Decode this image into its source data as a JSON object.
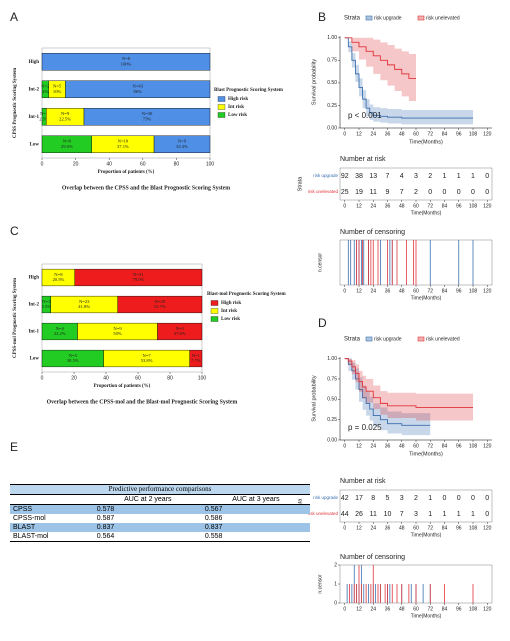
{
  "chart_data": [
    {
      "panel": "A",
      "type": "hbar-stack",
      "title": "Overlap between the CPSS and the Blast Prognostic Scoring System",
      "xlabel": "Proportion of patients (%)",
      "ylabel": "CPSS Prognostic Scoring System",
      "legend_title": "Blast Prognostic Scoring System",
      "categories": [
        "Low",
        "Int-1",
        "Int-2",
        "High"
      ],
      "xlim": [
        0,
        100
      ],
      "xticks": [
        0,
        20,
        40,
        60,
        80,
        100
      ],
      "series": [
        {
          "name": "High risk",
          "color": "#4f8fe6",
          "values": [
            33.3,
            75,
            86,
            100
          ],
          "value_labels": [
            "N=9 33.3%",
            "N=30 75%",
            "N=43 86%",
            "N=8 100%"
          ]
        },
        {
          "name": "Int risk",
          "color": "#ffff00",
          "values": [
            37.1,
            22.5,
            10,
            null
          ],
          "value_labels": [
            "N=10 37.1%",
            "N=9 22.5%",
            "N=5 10%",
            null
          ]
        },
        {
          "name": "Low risk",
          "color": "#22cc22",
          "values": [
            29.6,
            2.5,
            4,
            null
          ],
          "value_labels": [
            "N=8 29.6%",
            "N=1 2.5%",
            "N=2 4%",
            null
          ]
        }
      ]
    },
    {
      "panel": "B",
      "type": "km",
      "legend_title": "Strata",
      "xlabel": "Time(Months)",
      "ylabel": "Survival probability",
      "pvalue": "p < 0.001",
      "xlim": [
        -4,
        124
      ],
      "xticks": [
        0,
        12,
        24,
        36,
        48,
        60,
        72,
        84,
        96,
        108,
        120
      ],
      "ylim": [
        0,
        1.02
      ],
      "yticks": [
        {
          "value": 0,
          "label": "0.00"
        },
        {
          "value": 0.25,
          "label": "0.25"
        },
        {
          "value": 0.5,
          "label": "0.50"
        },
        {
          "value": 0.75,
          "label": "0.75"
        },
        {
          "value": 1,
          "label": "1.00"
        }
      ],
      "series": [
        {
          "name": "risk upgrade",
          "color": "#3a6fb0",
          "x": [
            0,
            3,
            6,
            9,
            12,
            15,
            18,
            21,
            24,
            30,
            36,
            48,
            60,
            72,
            96,
            108
          ],
          "values": [
            1,
            0.9,
            0.75,
            0.6,
            0.45,
            0.32,
            0.22,
            0.17,
            0.14,
            0.13,
            0.12,
            0.11,
            0.11,
            0.11,
            0.11,
            0.11
          ],
          "lower": [
            1,
            0.84,
            0.67,
            0.51,
            0.35,
            0.22,
            0.13,
            0.09,
            0.07,
            0.06,
            0.05,
            0.04,
            0.04,
            0.04,
            0.04,
            0.04
          ],
          "upper": [
            1,
            0.96,
            0.83,
            0.7,
            0.55,
            0.42,
            0.32,
            0.26,
            0.23,
            0.22,
            0.21,
            0.2,
            0.2,
            0.2,
            0.2,
            0.2
          ]
        },
        {
          "name": "risk unelevated",
          "color": "#e0353a",
          "x": [
            0,
            6,
            12,
            18,
            24,
            30,
            36,
            42,
            48,
            54,
            60
          ],
          "values": [
            1,
            0.95,
            0.9,
            0.85,
            0.8,
            0.75,
            0.7,
            0.65,
            0.6,
            0.55,
            0.55
          ],
          "lower": [
            1,
            0.85,
            0.76,
            0.68,
            0.6,
            0.53,
            0.47,
            0.41,
            0.35,
            0.3,
            0.3
          ],
          "upper": [
            1,
            1,
            1,
            1,
            0.98,
            0.95,
            0.92,
            0.88,
            0.85,
            0.82,
            0.82
          ]
        }
      ]
    },
    {
      "type": "risk-table",
      "title": "Number at risk",
      "ylabel": "Strata",
      "xlabel": "Time(Months)",
      "xlim": [
        -4,
        124
      ],
      "xticks": [
        0,
        12,
        24,
        36,
        48,
        60,
        72,
        84,
        96,
        108,
        120
      ],
      "series": [
        {
          "name": "risk upgrade",
          "color": "#3a6fb0",
          "values": [
            92,
            38,
            13,
            7,
            4,
            3,
            2,
            1,
            1,
            1,
            0
          ]
        },
        {
          "name": "risk unelevated",
          "color": "#e0353a",
          "values": [
            25,
            19,
            11,
            9,
            7,
            2,
            0,
            0,
            0,
            0,
            0
          ]
        }
      ]
    },
    {
      "type": "censor",
      "title": "Number of censoring",
      "ylabel": "n.censor",
      "xlabel": "Time(Months)",
      "xlim": [
        -4,
        124
      ],
      "xticks": [
        0,
        12,
        24,
        36,
        48,
        60,
        72,
        84,
        96,
        108,
        120
      ],
      "ylim": [
        0,
        1
      ],
      "series": [
        {
          "name": "risk upgrade",
          "color": "#3a6fb0",
          "x": [
            3,
            5,
            8,
            10,
            12,
            14,
            16,
            20,
            30,
            38,
            40,
            72,
            96,
            108
          ],
          "values": [
            1,
            1,
            1,
            1,
            1,
            1,
            1,
            1,
            1,
            1,
            1,
            1,
            1,
            1
          ]
        },
        {
          "name": "risk unelevated",
          "color": "#e0353a",
          "x": [
            10,
            12,
            15,
            20,
            22,
            24,
            28,
            36,
            40,
            44,
            52,
            58,
            60
          ],
          "values": [
            1,
            1,
            1,
            1,
            1,
            1,
            1,
            1,
            1,
            1,
            1,
            1,
            1
          ]
        }
      ]
    },
    {
      "panel": "C",
      "type": "hbar-stack",
      "title": "Overlap between the CPSS-mol and the Blast-mol Prognostic Scoring System",
      "xlabel": "Proportion of patients (%)",
      "ylabel": "CPSS-mol Prognostic Scoring System",
      "legend_title": "Blast-mol Prognostic Scoring System",
      "categories": [
        "Low",
        "Int-1",
        "Int-2",
        "High"
      ],
      "xlim": [
        0,
        100
      ],
      "xticks": [
        0,
        20,
        40,
        60,
        80,
        100
      ],
      "series": [
        {
          "name": "High risk",
          "color": "#ee1c1c",
          "values": [
            7.7,
            27.8,
            52.7,
            79.5
          ],
          "value_labels": [
            "N=1 7.7%",
            "N=5 27.8%",
            "N=29 52.7%",
            "N=31 79.5%"
          ]
        },
        {
          "name": "Int risk",
          "color": "#ffff00",
          "values": [
            53.8,
            50,
            41.8,
            20.5
          ],
          "value_labels": [
            "N=7 53.8%",
            "N=9 50%",
            "N=23 41.8%",
            "N=8 20.5%"
          ]
        },
        {
          "name": "Low risk",
          "color": "#22cc22",
          "values": [
            38.5,
            22.2,
            5.5,
            null
          ],
          "value_labels": [
            "N=5 38.5%",
            "N=4 22.2%",
            "N=3 5.5%",
            null
          ]
        }
      ]
    },
    {
      "panel": "D",
      "type": "km",
      "legend_title": "Strata",
      "xlabel": "Time(Months)",
      "ylabel": "Survival probability",
      "pvalue": "p = 0.025",
      "xlim": [
        -4,
        124
      ],
      "xticks": [
        0,
        12,
        24,
        36,
        48,
        60,
        72,
        84,
        96,
        108,
        120
      ],
      "ylim": [
        0,
        1.02
      ],
      "yticks": [
        {
          "value": 0,
          "label": "0.00"
        },
        {
          "value": 0.25,
          "label": "0.25"
        },
        {
          "value": 0.5,
          "label": "0.50"
        },
        {
          "value": 0.75,
          "label": "0.75"
        },
        {
          "value": 1,
          "label": "1.00"
        }
      ],
      "series": [
        {
          "name": "risk upgrade",
          "color": "#3a6fb0",
          "x": [
            0,
            3,
            6,
            9,
            12,
            15,
            18,
            21,
            24,
            30,
            36,
            48,
            72
          ],
          "values": [
            1,
            0.93,
            0.85,
            0.75,
            0.62,
            0.52,
            0.45,
            0.38,
            0.3,
            0.25,
            0.2,
            0.18,
            0.18
          ],
          "lower": [
            1,
            0.85,
            0.74,
            0.62,
            0.47,
            0.37,
            0.3,
            0.24,
            0.17,
            0.12,
            0.08,
            0.06,
            0.06
          ],
          "upper": [
            1,
            1,
            0.95,
            0.88,
            0.77,
            0.67,
            0.6,
            0.53,
            0.45,
            0.4,
            0.35,
            0.33,
            0.33
          ]
        },
        {
          "name": "risk unelevated",
          "color": "#e0353a",
          "x": [
            0,
            3,
            6,
            9,
            12,
            15,
            18,
            24,
            30,
            36,
            60,
            108
          ],
          "values": [
            1,
            0.97,
            0.9,
            0.82,
            0.72,
            0.65,
            0.6,
            0.52,
            0.45,
            0.42,
            0.4,
            0.4
          ],
          "lower": [
            1,
            0.92,
            0.81,
            0.71,
            0.59,
            0.51,
            0.46,
            0.38,
            0.31,
            0.27,
            0.24,
            0.24
          ],
          "upper": [
            1,
            1,
            0.98,
            0.93,
            0.85,
            0.79,
            0.75,
            0.67,
            0.6,
            0.58,
            0.57,
            0.57
          ]
        }
      ]
    },
    {
      "type": "risk-table",
      "title": "Number at risk",
      "ylabel": "Strata",
      "xlabel": "Time(Months)",
      "xlim": [
        -4,
        124
      ],
      "xticks": [
        0,
        12,
        24,
        36,
        48,
        60,
        72,
        84,
        96,
        108,
        120
      ],
      "series": [
        {
          "name": "risk upgrade",
          "color": "#3a6fb0",
          "values": [
            42,
            17,
            8,
            5,
            3,
            2,
            1,
            0,
            0,
            0,
            0
          ]
        },
        {
          "name": "risk unelevated",
          "color": "#e0353a",
          "values": [
            44,
            26,
            11,
            10,
            7,
            3,
            1,
            1,
            1,
            1,
            0
          ]
        }
      ]
    },
    {
      "type": "censor",
      "title": "Number of censoring",
      "ylabel": "n.censor",
      "xlabel": "Time(Months)",
      "xlim": [
        -4,
        124
      ],
      "xticks": [
        0,
        12,
        24,
        36,
        48,
        60,
        72,
        84,
        96,
        108,
        120
      ],
      "ylim": [
        0,
        2
      ],
      "yticks": [
        0,
        1,
        2
      ],
      "series": [
        {
          "name": "risk upgrade",
          "color": "#3a6fb0",
          "x": [
            2,
            6,
            8,
            10,
            12,
            14,
            16,
            20,
            24,
            26,
            30,
            36,
            38,
            48,
            56,
            60,
            66,
            72
          ],
          "values": [
            1,
            1,
            2,
            1,
            1,
            2,
            1,
            1,
            1,
            1,
            1,
            1,
            1,
            1,
            1,
            1,
            1,
            1
          ]
        },
        {
          "name": "risk unelevated",
          "color": "#e0353a",
          "x": [
            4,
            8,
            10,
            12,
            14,
            18,
            22,
            24,
            28,
            30,
            34,
            36,
            40,
            44,
            48,
            54,
            60,
            72,
            84,
            108
          ],
          "values": [
            1,
            1,
            1,
            2,
            1,
            1,
            1,
            2,
            1,
            1,
            1,
            1,
            1,
            1,
            1,
            1,
            1,
            1,
            1,
            1
          ]
        }
      ]
    }
  ],
  "table": {
    "panel": "E",
    "title": "Predictive performance comparisons",
    "header": [
      "AUC at 2 years",
      "AUC at 3 years"
    ],
    "rows": [
      [
        "CPSS",
        "0.578",
        "0.567"
      ],
      [
        "CPSS-mol",
        "0.587",
        "0.586"
      ],
      [
        "BLAST",
        "0.837",
        "0.837"
      ],
      [
        "BLAST-mol",
        "0.564",
        "0.558"
      ]
    ]
  }
}
